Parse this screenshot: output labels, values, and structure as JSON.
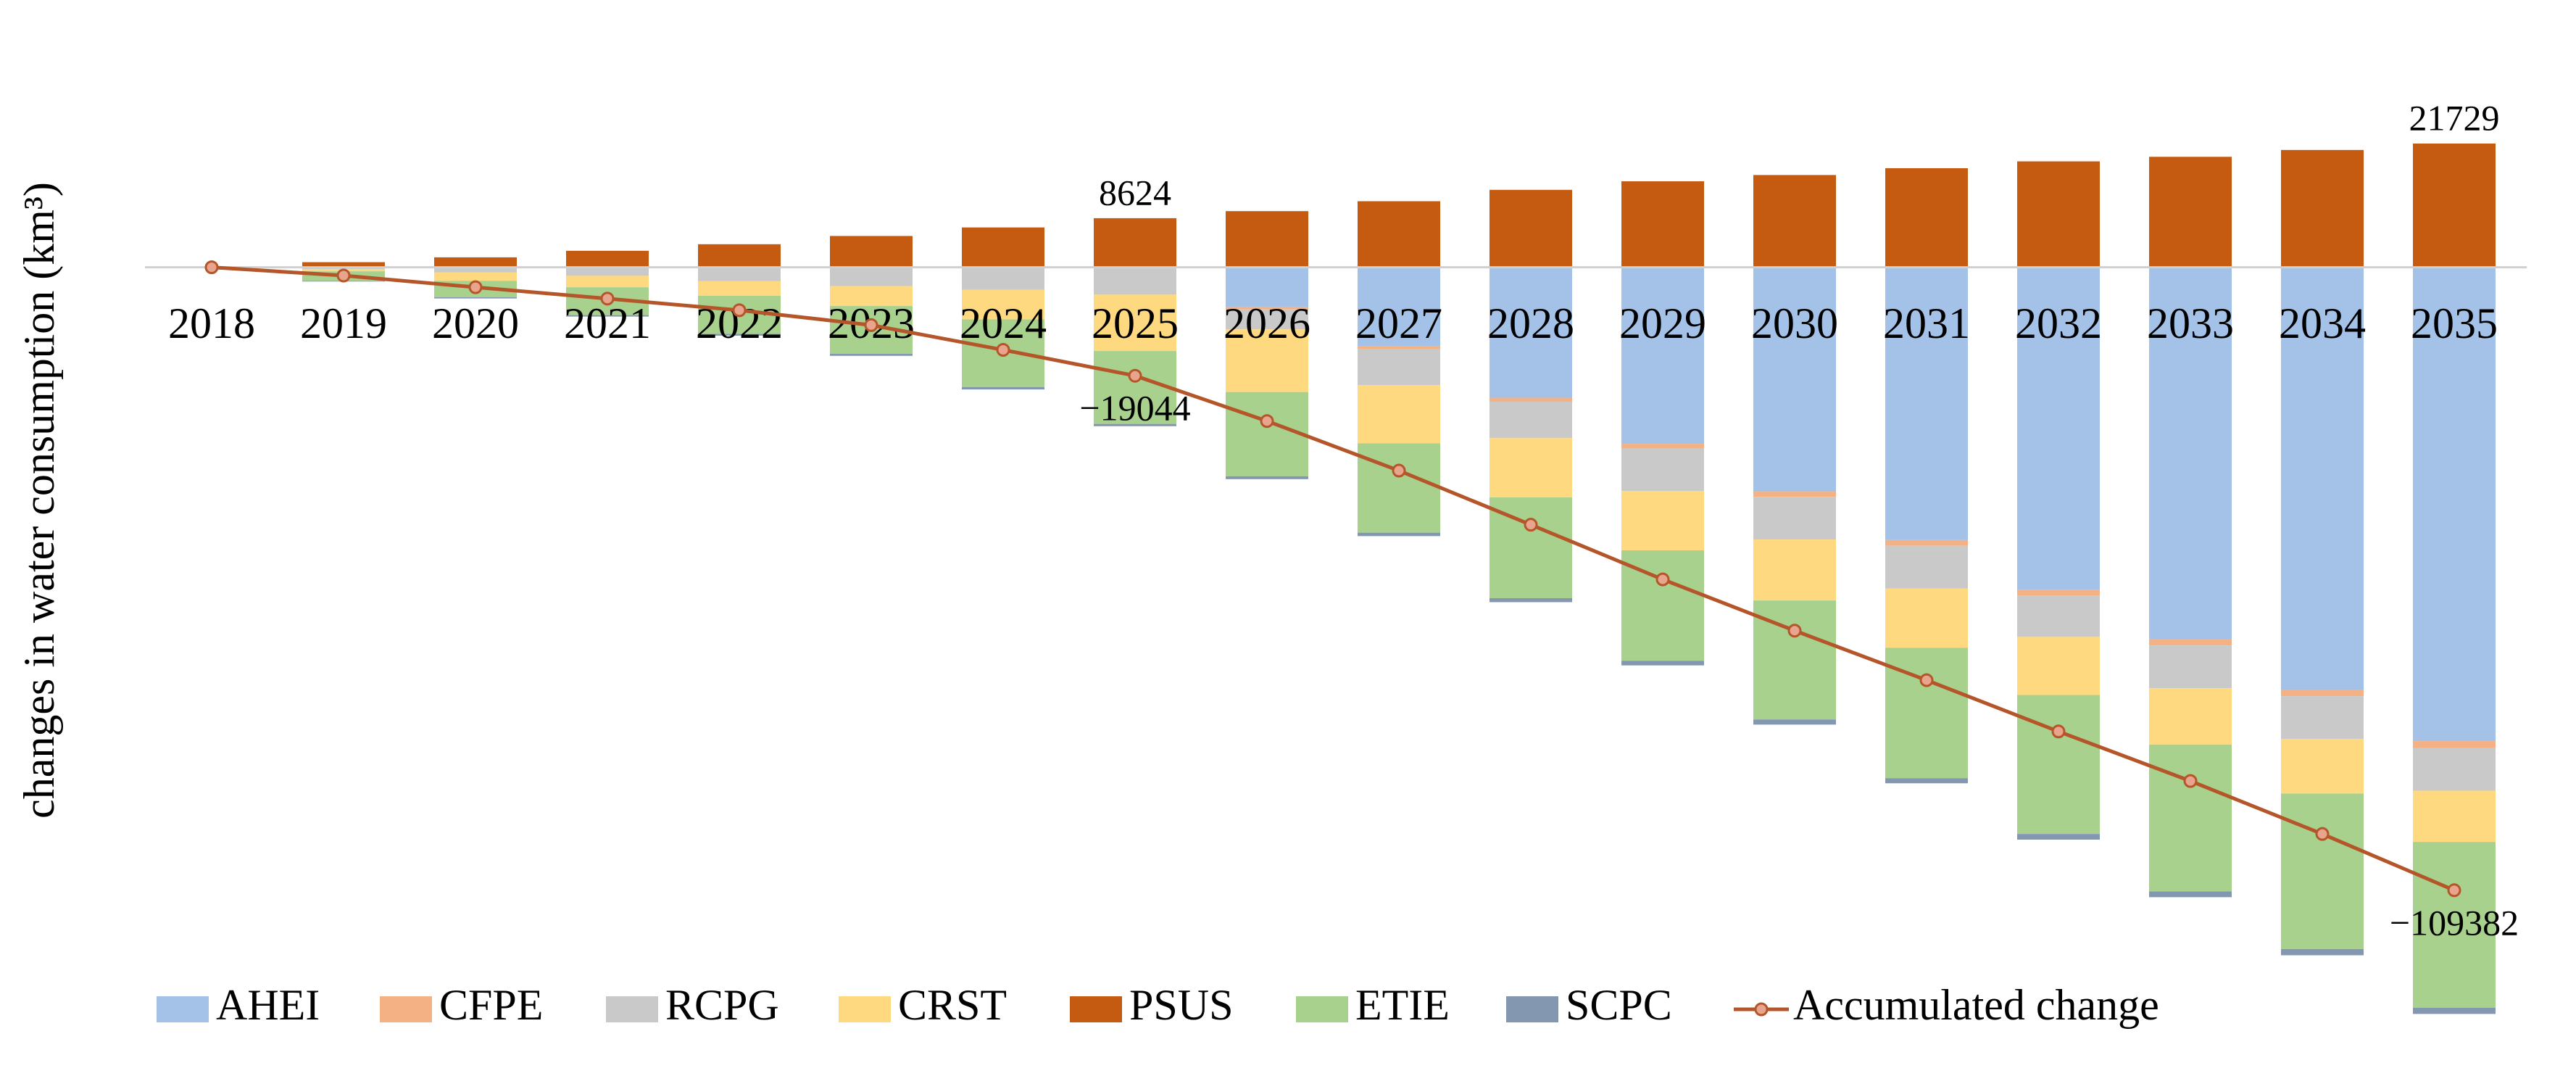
{
  "chart_data": {
    "type": "bar",
    "stacked": true,
    "y_label": "changes in water consumption (km³)",
    "categories": [
      "2018",
      "2019",
      "2020",
      "2021",
      "2022",
      "2023",
      "2024",
      "2025",
      "2026",
      "2027",
      "2028",
      "2029",
      "2030",
      "2031",
      "2032",
      "2033",
      "2034",
      "2035"
    ],
    "ylim": [
      -135000,
      30000
    ],
    "series": [
      {
        "name": "AHEI",
        "color": "#a4c2e8",
        "values": [
          0,
          0,
          0,
          0,
          0,
          0,
          0,
          0,
          -7000,
          -13900,
          -22900,
          -31000,
          -39400,
          -47900,
          -56600,
          -65300,
          -74200,
          -83200
        ]
      },
      {
        "name": "CFPE",
        "color": "#f4b183",
        "values": [
          0,
          0,
          -50,
          -50,
          -100,
          -100,
          -150,
          -200,
          -400,
          -400,
          -700,
          -800,
          -900,
          -1000,
          -1000,
          -1100,
          -1100,
          -1200
        ]
      },
      {
        "name": "RCPG",
        "color": "#c9c9c9",
        "values": [
          0,
          -300,
          -870,
          -1450,
          -2300,
          -3200,
          -3800,
          -4600,
          -3500,
          -6400,
          -6400,
          -7500,
          -7500,
          -7500,
          -7300,
          -7500,
          -7500,
          -7500
        ]
      },
      {
        "name": "CRST",
        "color": "#ffd97f",
        "values": [
          0,
          -400,
          -1450,
          -2000,
          -2600,
          -3500,
          -5200,
          -9900,
          -11000,
          -10200,
          -10400,
          -10400,
          -10700,
          -10400,
          -10200,
          -9900,
          -9600,
          -9000
        ]
      },
      {
        "name": "PSUS",
        "color": "#c55a11",
        "values": [
          0,
          900,
          1750,
          2900,
          4050,
          5500,
          7000,
          8624,
          9860,
          11600,
          13600,
          15100,
          16200,
          17400,
          18600,
          19400,
          20600,
          21729
        ],
        "value_labels": [
          null,
          null,
          null,
          null,
          null,
          null,
          null,
          "8624",
          null,
          null,
          null,
          null,
          null,
          null,
          null,
          null,
          null,
          "21729"
        ]
      },
      {
        "name": "ETIE",
        "color": "#a9d18e",
        "values": [
          0,
          -1700,
          -2900,
          -4900,
          -6700,
          -8400,
          -11900,
          -12800,
          -14800,
          -15700,
          -17700,
          -19400,
          -20900,
          -22900,
          -24400,
          -25800,
          -27300,
          -29100
        ]
      },
      {
        "name": "SCPC",
        "color": "#8497b0",
        "values": [
          0,
          -100,
          -200,
          -250,
          -300,
          -350,
          -400,
          -400,
          -500,
          -600,
          -700,
          -800,
          -900,
          -900,
          -1000,
          -1000,
          -1100,
          -1100
        ]
      },
      {
        "name": "Accumulated change",
        "type": "line",
        "color": "#b5562a",
        "values": [
          0,
          -1450,
          -3500,
          -5500,
          -7540,
          -10150,
          -14500,
          -19044,
          -27000,
          -35700,
          -45200,
          -54800,
          -63800,
          -72500,
          -81500,
          -90200,
          -99500,
          -109382
        ],
        "value_labels": [
          null,
          null,
          null,
          null,
          null,
          null,
          null,
          "−19044",
          null,
          null,
          null,
          null,
          null,
          null,
          null,
          null,
          null,
          "−109382"
        ]
      }
    ]
  }
}
